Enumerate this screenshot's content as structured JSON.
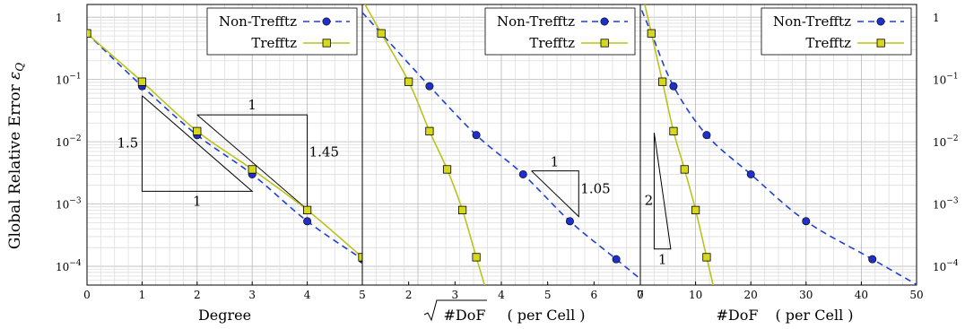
{
  "figure": {
    "ylabel": "Global Relative Error ",
    "ylabel_symbol": "ε",
    "ylabel_subscript": "Q",
    "y_tick_labels": [
      {
        "value": 1,
        "label": "1"
      },
      {
        "value": 0.1,
        "label": "10",
        "exp": "−1"
      },
      {
        "value": 0.01,
        "label": "10",
        "exp": "−2"
      },
      {
        "value": 0.001,
        "label": "10",
        "exp": "−3"
      },
      {
        "value": 0.0001,
        "label": "10",
        "exp": "−4"
      }
    ]
  },
  "chart_data": [
    {
      "type": "line",
      "xlabel": "Degree",
      "xlim": [
        0,
        5
      ],
      "ylim": [
        5e-05,
        1.6
      ],
      "yscale": "log",
      "x_ticks": [
        0,
        1,
        2,
        3,
        4,
        5
      ],
      "grid": true,
      "legend": "top-right",
      "series": [
        {
          "name": "Non-Trefftz",
          "style": "dashed",
          "color": "#1f3fd6",
          "marker": "circle",
          "x": [
            0,
            1,
            2,
            3,
            4,
            5
          ],
          "y": [
            0.55,
            0.078,
            0.0128,
            0.003,
            0.00053,
            0.00013
          ]
        },
        {
          "name": "Trefftz",
          "style": "solid",
          "color": "#bcc21a",
          "marker": "square",
          "x": [
            0,
            1,
            2,
            3,
            4,
            5
          ],
          "y": [
            0.55,
            0.092,
            0.0148,
            0.0036,
            0.0008,
            0.00014
          ]
        }
      ],
      "annotations": [
        {
          "label": "1.5",
          "kind": "slope-left"
        },
        {
          "label": "1",
          "kind": "slope-run"
        },
        {
          "label": "1",
          "kind": "slope-run-top"
        },
        {
          "label": "1.45",
          "kind": "slope-right"
        }
      ]
    },
    {
      "type": "line",
      "xlabel_parts": {
        "sqrt": "#DoF",
        "suffix": "( per Cell )"
      },
      "xlim": [
        1,
        7
      ],
      "ylim": [
        5e-05,
        1.6
      ],
      "yscale": "log",
      "x_ticks": [
        2,
        3,
        4,
        5,
        6,
        7
      ],
      "grid": true,
      "legend": "top-right",
      "series": [
        {
          "name": "Non-Trefftz",
          "style": "dashed",
          "color": "#1f3fd6",
          "marker": "circle",
          "x": [
            1.41,
            2.45,
            3.46,
            4.47,
            5.48,
            6.48
          ],
          "y": [
            0.55,
            0.078,
            0.0128,
            0.003,
            0.00053,
            0.00013
          ]
        },
        {
          "name": "Trefftz",
          "style": "solid",
          "color": "#bcc21a",
          "marker": "square",
          "x": [
            1.41,
            2.0,
            2.45,
            2.83,
            3.16,
            3.46
          ],
          "y": [
            0.55,
            0.092,
            0.0148,
            0.0036,
            0.0008,
            0.00014
          ]
        }
      ],
      "annotations": [
        {
          "label": "1",
          "kind": "slope-run-top"
        },
        {
          "label": "1.05",
          "kind": "slope-right"
        }
      ]
    },
    {
      "type": "line",
      "xlabel_parts": {
        "main": "#DoF",
        "suffix": "( per Cell )"
      },
      "xlim": [
        0,
        50
      ],
      "ylim": [
        5e-05,
        1.6
      ],
      "yscale": "log",
      "x_ticks": [
        0,
        10,
        20,
        30,
        40,
        50
      ],
      "grid": true,
      "legend": "top-right",
      "series": [
        {
          "name": "Non-Trefftz",
          "style": "dashed",
          "color": "#1f3fd6",
          "marker": "circle",
          "x": [
            2,
            6,
            12,
            20,
            30,
            42
          ],
          "y": [
            0.55,
            0.078,
            0.0128,
            0.003,
            0.00053,
            0.00013
          ]
        },
        {
          "name": "Trefftz",
          "style": "solid",
          "color": "#bcc21a",
          "marker": "square",
          "x": [
            2,
            4,
            6,
            8,
            10,
            12
          ],
          "y": [
            0.55,
            0.092,
            0.0148,
            0.0036,
            0.0008,
            0.00014
          ]
        }
      ],
      "annotations": [
        {
          "label": "2",
          "kind": "slope-left"
        },
        {
          "label": "1",
          "kind": "slope-run"
        }
      ]
    }
  ]
}
